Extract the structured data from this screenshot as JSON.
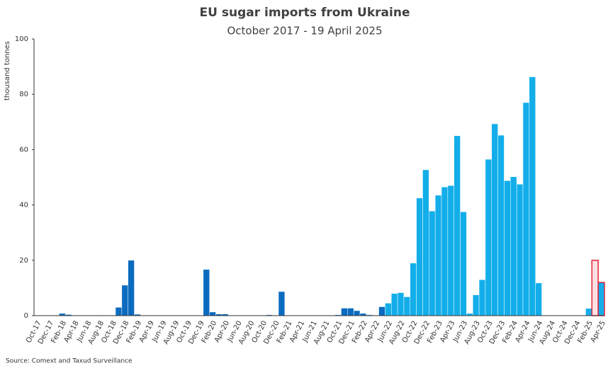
{
  "chart_data": {
    "type": "bar",
    "title": "EU sugar imports from Ukraine",
    "subtitle": "October 2017 - 19 April 2025",
    "ylabel": "thousand tonnes",
    "source": "Source: Comext and Taxud Surveillance",
    "categories": [
      "Oct-17",
      null,
      "Dec-17",
      null,
      "Feb-18",
      null,
      "Apr-18",
      null,
      "Jun-18",
      null,
      "Aug-18",
      null,
      "Oct-18",
      null,
      "Dec-18",
      null,
      "Feb-19",
      null,
      "Apr-19",
      null,
      "Jun-19",
      null,
      "Aug-19",
      null,
      "Oct-19",
      null,
      "Dec-19",
      null,
      "Feb-20",
      null,
      "Apr-20",
      null,
      "Jun-20",
      null,
      "Aug-20",
      null,
      "Oct-20",
      null,
      "Dec-20",
      null,
      "Feb-21",
      null,
      "Apr-21",
      null,
      "Jun-21",
      null,
      "Aug-21",
      null,
      "Oct-21",
      null,
      "Dec-21",
      null,
      "Feb-22",
      null,
      "Apr-22",
      null,
      "Jun-22",
      null,
      "Aug-22",
      null,
      "Oct-22",
      null,
      "Dec-22",
      null,
      "Feb-23",
      null,
      "Apr-23",
      null,
      "Jun-23",
      null,
      "Aug-23",
      null,
      "Oct-23",
      null,
      "Dec-23",
      null,
      "Feb-24",
      null,
      "Apr-24",
      null,
      "Jun-24",
      null,
      "Aug-24",
      null,
      "Oct-24",
      null,
      "Dec-24",
      null,
      "Feb-25",
      null,
      "Apr-25"
    ],
    "values": [
      0,
      0,
      0,
      0.2,
      0.8,
      0.4,
      0,
      0,
      0,
      0,
      0.2,
      0,
      0.2,
      3,
      11,
      20,
      0.5,
      0,
      0,
      0,
      0,
      0,
      0,
      0,
      0,
      0,
      0,
      16.7,
      1.3,
      0.6,
      0.6,
      0,
      0,
      0,
      0,
      0,
      0,
      0.3,
      0,
      8.7,
      0,
      0,
      0,
      0,
      0,
      0,
      0,
      0,
      0.3,
      2.7,
      2.7,
      1.8,
      0.8,
      0.3,
      0,
      3.2,
      4.5,
      8,
      8.3,
      6.8,
      19,
      42.5,
      52.7,
      37.8,
      43.5,
      46.5,
      47,
      65,
      37.5,
      0.8,
      7.5,
      13,
      56.5,
      69.3,
      65.2,
      48.8,
      50.2,
      47.5,
      77,
      86.3,
      11.8,
      0,
      0,
      0,
      0,
      0,
      0,
      0.2,
      2.6,
      20,
      12
    ],
    "colors": [
      "#0b6bbf",
      "#0b6bbf",
      "#0b6bbf",
      "#0b6bbf",
      "#0b6bbf",
      "#0b6bbf",
      "#0b6bbf",
      "#0b6bbf",
      "#0b6bbf",
      "#0b6bbf",
      "#0b6bbf",
      "#0b6bbf",
      "#0b6bbf",
      "#0b6bbf",
      "#0b6bbf",
      "#0b6bbf",
      "#0b6bbf",
      "#0b6bbf",
      "#0b6bbf",
      "#0b6bbf",
      "#0b6bbf",
      "#0b6bbf",
      "#0b6bbf",
      "#0b6bbf",
      "#0b6bbf",
      "#0b6bbf",
      "#0b6bbf",
      "#0b6bbf",
      "#0b6bbf",
      "#0b6bbf",
      "#0b6bbf",
      "#0b6bbf",
      "#0b6bbf",
      "#0b6bbf",
      "#0b6bbf",
      "#0b6bbf",
      "#0b6bbf",
      "#0b6bbf",
      "#0b6bbf",
      "#0b6bbf",
      "#0b6bbf",
      "#0b6bbf",
      "#0b6bbf",
      "#0b6bbf",
      "#0b6bbf",
      "#0b6bbf",
      "#0b6bbf",
      "#0b6bbf",
      "#0b6bbf",
      "#0b6bbf",
      "#0b6bbf",
      "#0b6bbf",
      "#0b6bbf",
      "#0b6bbf",
      "#0b6bbf",
      "#0b6bbf",
      "#13aeea",
      "#13aeea",
      "#13aeea",
      "#13aeea",
      "#13aeea",
      "#13aeea",
      "#13aeea",
      "#13aeea",
      "#13aeea",
      "#13aeea",
      "#13aeea",
      "#13aeea",
      "#13aeea",
      "#13aeea",
      "#13aeea",
      "#13aeea",
      "#13aeea",
      "#13aeea",
      "#13aeea",
      "#13aeea",
      "#13aeea",
      "#13aeea",
      "#13aeea",
      "#13aeea",
      "#13aeea",
      "#13aeea",
      "#13aeea",
      "#13aeea",
      "#13aeea",
      "#13aeea",
      "#13aeea",
      "#13aeea",
      "#13aeea",
      "#fbe1e4",
      "#13aeea"
    ],
    "edge_colors": [
      null,
      null,
      null,
      null,
      null,
      null,
      null,
      null,
      null,
      null,
      null,
      null,
      null,
      null,
      null,
      null,
      null,
      null,
      null,
      null,
      null,
      null,
      null,
      null,
      null,
      null,
      null,
      null,
      null,
      null,
      null,
      null,
      null,
      null,
      null,
      null,
      null,
      null,
      null,
      null,
      null,
      null,
      null,
      null,
      null,
      null,
      null,
      null,
      null,
      null,
      null,
      null,
      null,
      null,
      null,
      null,
      null,
      null,
      null,
      null,
      null,
      null,
      null,
      null,
      null,
      null,
      null,
      null,
      null,
      null,
      null,
      null,
      null,
      null,
      null,
      null,
      null,
      null,
      null,
      null,
      null,
      null,
      null,
      null,
      null,
      null,
      null,
      null,
      null,
      "#e3263a",
      "#e3263a"
    ],
    "ylim": [
      0,
      100
    ],
    "yticks": [
      0,
      20,
      40,
      60,
      80,
      100
    ],
    "grid": false
  }
}
